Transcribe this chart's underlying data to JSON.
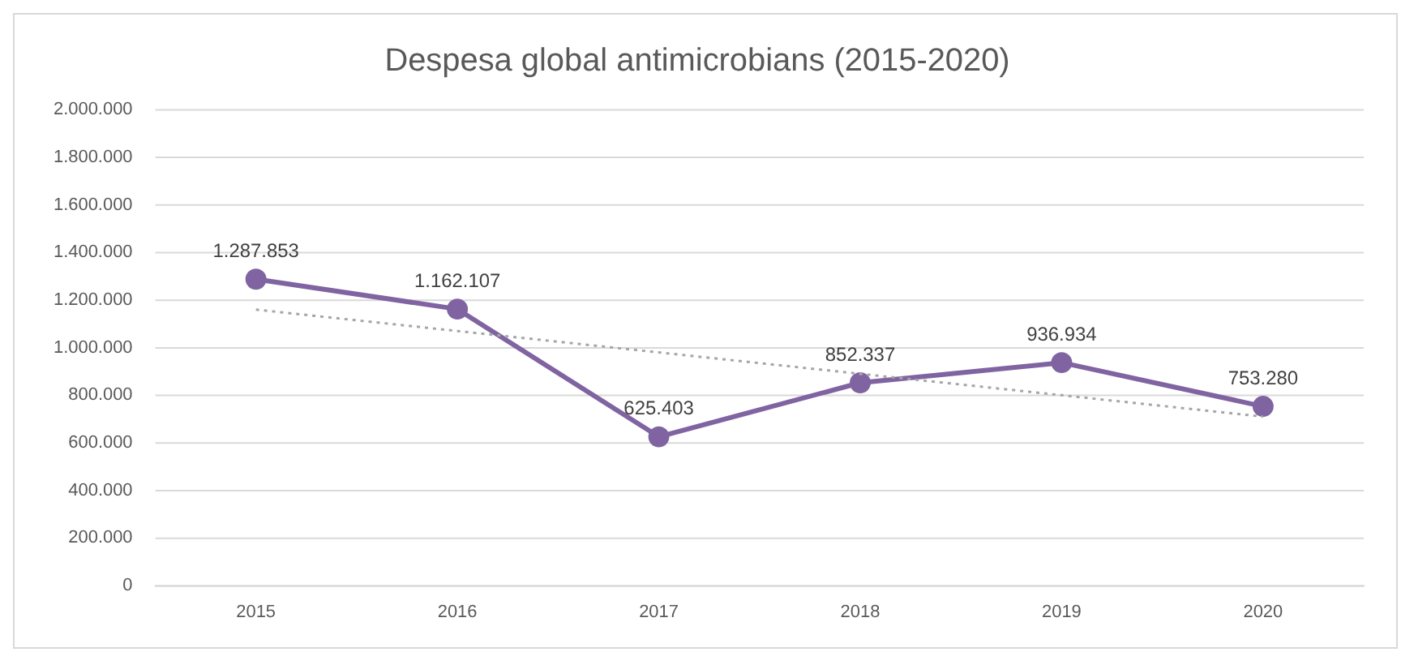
{
  "chart_data": {
    "type": "line",
    "title": "Despesa global antimicrobians (2015-2020)",
    "categories": [
      "2015",
      "2016",
      "2017",
      "2018",
      "2019",
      "2020"
    ],
    "series": [
      {
        "color": "#8064a2",
        "values": [
          1287853,
          1162107,
          625403,
          852337,
          936934,
          753280
        ],
        "value_labels": [
          "1.287.853",
          "1.162.107",
          "625.403",
          "852.337",
          "936.934",
          "753.280"
        ],
        "marker": "circle",
        "line_style": "solid"
      },
      {
        "type": "line",
        "color": "#a6a6a6",
        "values": [
          1160000,
          1070000,
          980000,
          890000,
          800000,
          710000
        ],
        "marker": "none",
        "line_style": "dotted"
      }
    ],
    "ylim": [
      0,
      2000000
    ],
    "yticks": [
      {
        "value": 0,
        "label": "0"
      },
      {
        "value": 200000,
        "label": "200.000"
      },
      {
        "value": 400000,
        "label": "400.000"
      },
      {
        "value": 600000,
        "label": "600.000"
      },
      {
        "value": 800000,
        "label": "800.000"
      },
      {
        "value": 1000000,
        "label": "1.000.000"
      },
      {
        "value": 1200000,
        "label": "1.200.000"
      },
      {
        "value": 1400000,
        "label": "1.400.000"
      },
      {
        "value": 1600000,
        "label": "1.600.000"
      },
      {
        "value": 1800000,
        "label": "1.800.000"
      },
      {
        "value": 2000000,
        "label": "2.000.000"
      }
    ],
    "grid": "y",
    "legend": false
  }
}
